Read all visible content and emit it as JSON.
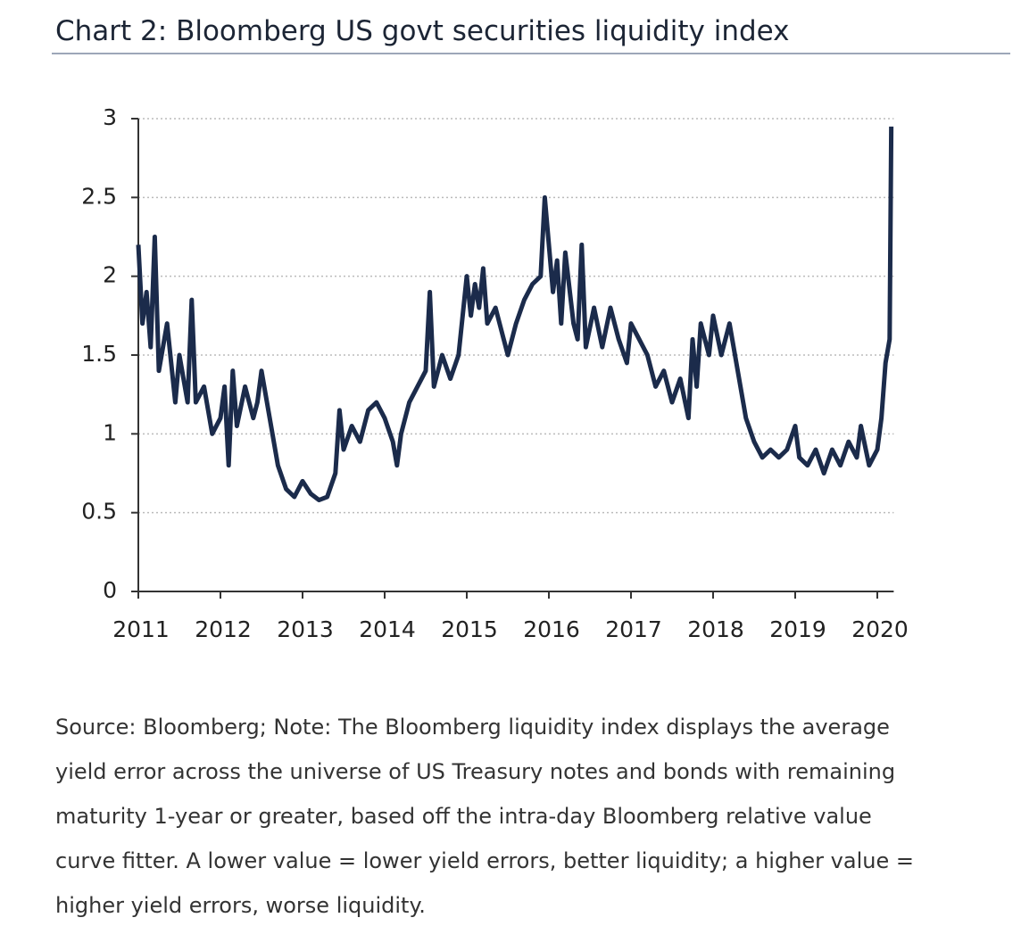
{
  "chart_data": {
    "type": "line",
    "title": "Chart 2: Bloomberg US govt securities liquidity index",
    "note_lines": [
      "Source: Bloomberg; Note: The Bloomberg liquidity index displays the average",
      "yield error across the universe of US Treasury notes and bonds with remaining",
      "maturity 1-year or greater, based off the intra-day Bloomberg relative value",
      "curve fitter. A lower value = lower yield errors, better liquidity; a higher value =",
      "higher yield errors, worse liquidity."
    ],
    "x": [
      2011.0,
      2011.05,
      2011.1,
      2011.15,
      2011.2,
      2011.25,
      2011.35,
      2011.45,
      2011.5,
      2011.6,
      2011.65,
      2011.7,
      2011.8,
      2011.9,
      2012.0,
      2012.05,
      2012.1,
      2012.15,
      2012.2,
      2012.3,
      2012.4,
      2012.45,
      2012.5,
      2012.6,
      2012.7,
      2012.8,
      2012.9,
      2013.0,
      2013.1,
      2013.2,
      2013.3,
      2013.4,
      2013.45,
      2013.5,
      2013.6,
      2013.7,
      2013.8,
      2013.9,
      2014.0,
      2014.1,
      2014.15,
      2014.2,
      2014.3,
      2014.4,
      2014.5,
      2014.55,
      2014.6,
      2014.7,
      2014.8,
      2014.9,
      2015.0,
      2015.05,
      2015.1,
      2015.15,
      2015.2,
      2015.25,
      2015.35,
      2015.45,
      2015.5,
      2015.6,
      2015.7,
      2015.8,
      2015.9,
      2015.95,
      2016.0,
      2016.05,
      2016.1,
      2016.15,
      2016.2,
      2016.3,
      2016.35,
      2016.4,
      2016.45,
      2016.55,
      2016.65,
      2016.75,
      2016.85,
      2016.95,
      2017.0,
      2017.1,
      2017.2,
      2017.3,
      2017.4,
      2017.5,
      2017.6,
      2017.7,
      2017.75,
      2017.8,
      2017.85,
      2017.95,
      2018.0,
      2018.1,
      2018.2,
      2018.3,
      2018.4,
      2018.5,
      2018.6,
      2018.7,
      2018.8,
      2018.9,
      2019.0,
      2019.05,
      2019.15,
      2019.25,
      2019.35,
      2019.45,
      2019.55,
      2019.65,
      2019.75,
      2019.8,
      2019.9,
      2020.0,
      2020.05,
      2020.1,
      2020.15,
      2020.17
    ],
    "series": [
      {
        "name": "Liquidity index",
        "color": "#1b2b4b",
        "values": [
          2.2,
          1.7,
          1.9,
          1.55,
          2.25,
          1.4,
          1.7,
          1.2,
          1.5,
          1.2,
          1.85,
          1.2,
          1.3,
          1.0,
          1.1,
          1.3,
          0.8,
          1.4,
          1.05,
          1.3,
          1.1,
          1.2,
          1.4,
          1.1,
          0.8,
          0.65,
          0.6,
          0.7,
          0.62,
          0.58,
          0.6,
          0.75,
          1.15,
          0.9,
          1.05,
          0.95,
          1.15,
          1.2,
          1.1,
          0.95,
          0.8,
          1.0,
          1.2,
          1.3,
          1.4,
          1.9,
          1.3,
          1.5,
          1.35,
          1.5,
          2.0,
          1.75,
          1.95,
          1.8,
          2.05,
          1.7,
          1.8,
          1.6,
          1.5,
          1.7,
          1.85,
          1.95,
          2.0,
          2.5,
          2.2,
          1.9,
          2.1,
          1.7,
          2.15,
          1.7,
          1.6,
          2.2,
          1.55,
          1.8,
          1.55,
          1.8,
          1.6,
          1.45,
          1.7,
          1.6,
          1.5,
          1.3,
          1.4,
          1.2,
          1.35,
          1.1,
          1.6,
          1.3,
          1.7,
          1.5,
          1.75,
          1.5,
          1.7,
          1.4,
          1.1,
          0.95,
          0.85,
          0.9,
          0.85,
          0.9,
          1.05,
          0.85,
          0.8,
          0.9,
          0.75,
          0.9,
          0.8,
          0.95,
          0.85,
          1.05,
          0.8,
          0.9,
          1.1,
          1.45,
          1.6,
          2.95
        ]
      }
    ],
    "xlim": [
      2011,
      2020.2
    ],
    "xticks": [
      2011,
      2012,
      2013,
      2014,
      2015,
      2016,
      2017,
      2018,
      2019,
      2020
    ],
    "ylim": [
      0,
      3
    ],
    "yticks": [
      0,
      0.5,
      1,
      1.5,
      2,
      2.5,
      3
    ],
    "grid": true
  }
}
